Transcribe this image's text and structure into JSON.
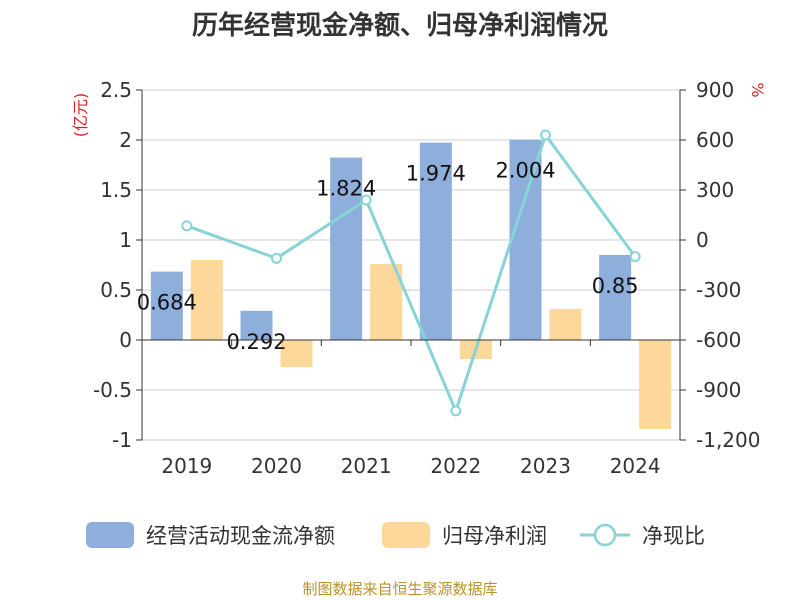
{
  "chart_data": {
    "type": "bar",
    "title": "历年经营现金净额、归母净利润情况",
    "categories": [
      "2019",
      "2020",
      "2021",
      "2022",
      "2023",
      "2024"
    ],
    "y_left": {
      "unit": "(亿元)",
      "min": -1,
      "max": 2.5,
      "ticks": [
        "2.5",
        "2",
        "1.5",
        "1",
        "0.5",
        "0",
        "-0.5",
        "-1"
      ]
    },
    "y_right": {
      "unit": "%",
      "min": -1200,
      "max": 900,
      "ticks": [
        "900",
        "600",
        "300",
        "0",
        "-300",
        "-600",
        "-900",
        "-1,200"
      ]
    },
    "series": [
      {
        "name": "经营活动现金流净额",
        "kind": "bar",
        "axis": "left",
        "color": "#8eaedc",
        "values": [
          0.684,
          0.292,
          1.824,
          1.974,
          2.004,
          0.85
        ],
        "labels": [
          "0.684",
          "0.292",
          "1.824",
          "1.974",
          "2.004",
          "0.85"
        ]
      },
      {
        "name": "归母净利润",
        "kind": "bar",
        "axis": "left",
        "color": "#fdd89a",
        "values": [
          0.8,
          -0.27,
          0.76,
          -0.19,
          0.31,
          -0.89
        ]
      },
      {
        "name": "净现比",
        "kind": "line",
        "axis": "right",
        "color": "#87d3d6",
        "values": [
          85,
          -110,
          240,
          -1025,
          630,
          -100
        ]
      }
    ],
    "grid": true,
    "legend": "bottom"
  },
  "source": "制图数据来自恒生聚源数据库"
}
